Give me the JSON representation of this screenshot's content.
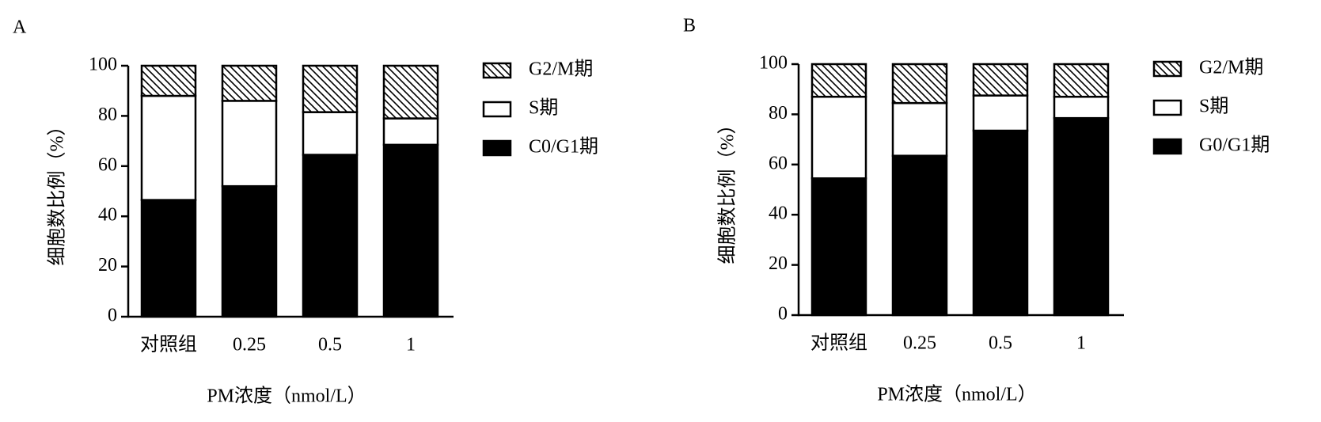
{
  "chart_data": [
    {
      "type": "bar",
      "stacked": true,
      "panel_label": "A",
      "x_label": "PM浓度（nmol/L）",
      "y_label": "细胞数比例（%）",
      "categories": [
        "对照组",
        "0.25",
        "0.5",
        "1"
      ],
      "series": [
        {
          "name": "C0/G1期",
          "color": "#000000",
          "values": [
            46.5,
            52,
            64.5,
            68.5
          ]
        },
        {
          "name": "S期",
          "color": "#ffffff",
          "values": [
            41.5,
            34,
            17,
            10.5
          ]
        },
        {
          "name": "G2/M期",
          "color": "#000000",
          "pattern": "hatch",
          "values": [
            12,
            14,
            18.5,
            21
          ]
        }
      ],
      "ylim": [
        0,
        100
      ],
      "yticks": [
        0,
        20,
        40,
        60,
        80,
        100
      ],
      "grid": false
    },
    {
      "type": "bar",
      "stacked": true,
      "panel_label": "B",
      "x_label": "PM浓度（nmol/L）",
      "y_label": "细胞数比例（%）",
      "categories": [
        "对照组",
        "0.25",
        "0.5",
        "1"
      ],
      "series": [
        {
          "name": "G0/G1期",
          "color": "#000000",
          "values": [
            54.5,
            63.5,
            73.5,
            78.5
          ]
        },
        {
          "name": "S期",
          "color": "#ffffff",
          "values": [
            32.5,
            21,
            14,
            8.5
          ]
        },
        {
          "name": "G2/M期",
          "color": "#000000",
          "pattern": "hatch",
          "values": [
            13,
            15.5,
            12.5,
            13
          ]
        }
      ],
      "ylim": [
        0,
        100
      ],
      "yticks": [
        0,
        20,
        40,
        60,
        80,
        100
      ],
      "grid": false
    }
  ]
}
